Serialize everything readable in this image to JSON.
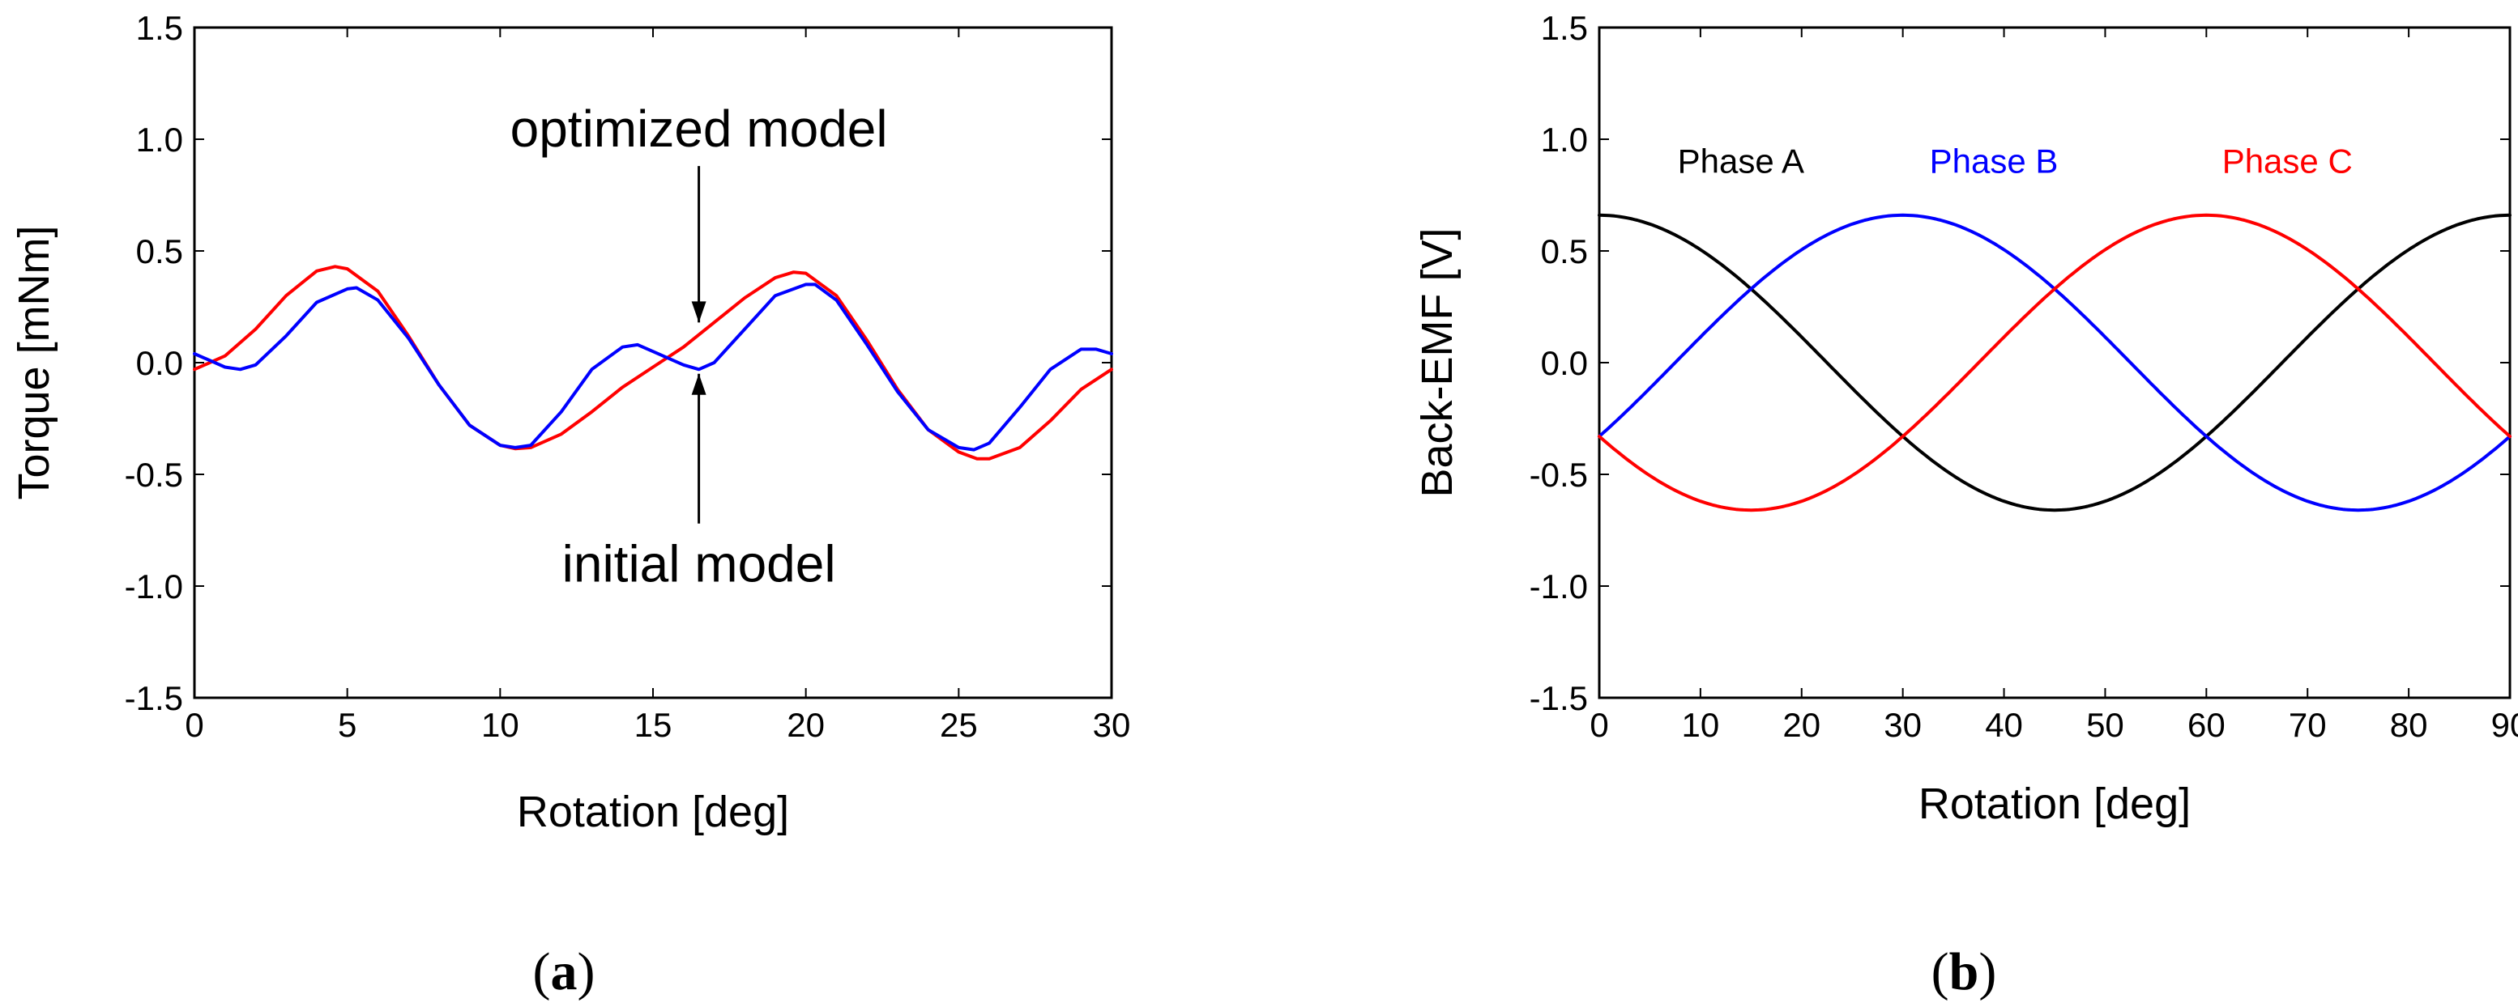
{
  "colors": {
    "red": "#ff0000",
    "blue": "#0000ff",
    "black": "#000000"
  },
  "chart_data": [
    {
      "id": "a",
      "type": "line",
      "caption": {
        "open": "(",
        "letter": "a",
        "close": ")"
      },
      "xlabel": "Rotation [deg]",
      "ylabel": "Torque [mNm]",
      "xlim": [
        0,
        30
      ],
      "ylim": [
        -1.5,
        1.5
      ],
      "xticks": [
        "0",
        "5",
        "10",
        "15",
        "20",
        "25",
        "30"
      ],
      "yticks": [
        "-1.5",
        "-1.0",
        "-0.5",
        "0.0",
        "0.5",
        "1.0",
        "1.5"
      ],
      "annotations": [
        {
          "text": "optimized model",
          "arrow_from": [
            16.5,
            0.88
          ],
          "arrow_to": [
            16.5,
            0.18
          ]
        },
        {
          "text": "initial model",
          "arrow_from": [
            16.5,
            -0.72
          ],
          "arrow_to": [
            16.5,
            -0.05
          ]
        }
      ],
      "series": [
        {
          "name": "optimized model",
          "color": "red",
          "x": [
            0,
            1,
            2,
            3,
            4,
            4.6,
            5,
            6,
            7,
            8,
            9,
            10,
            10.5,
            11,
            12,
            13,
            14,
            15,
            16,
            17,
            18,
            19,
            19.6,
            20,
            21,
            22,
            23,
            24,
            25,
            25.6,
            26,
            27,
            28,
            29,
            30
          ],
          "y": [
            -0.03,
            0.03,
            0.15,
            0.3,
            0.41,
            0.43,
            0.42,
            0.32,
            0.12,
            -0.1,
            -0.28,
            -0.37,
            -0.385,
            -0.38,
            -0.32,
            -0.22,
            -0.11,
            -0.02,
            0.07,
            0.18,
            0.29,
            0.38,
            0.405,
            0.4,
            0.3,
            0.1,
            -0.12,
            -0.3,
            -0.4,
            -0.43,
            -0.43,
            -0.38,
            -0.26,
            -0.12,
            -0.03
          ]
        },
        {
          "name": "initial model",
          "color": "blue",
          "x": [
            0,
            0.5,
            1,
            1.5,
            2,
            3,
            4,
            5,
            5.3,
            6,
            7,
            8,
            9,
            10,
            10.5,
            11,
            12,
            13,
            14,
            14.5,
            15,
            16,
            16.5,
            17,
            18,
            19,
            20,
            20.3,
            21,
            22,
            23,
            24,
            25,
            25.5,
            26,
            27,
            28,
            29,
            29.5,
            30
          ],
          "y": [
            0.04,
            0.01,
            -0.02,
            -0.03,
            -0.01,
            0.12,
            0.27,
            0.33,
            0.335,
            0.28,
            0.11,
            -0.1,
            -0.28,
            -0.37,
            -0.38,
            -0.37,
            -0.22,
            -0.03,
            0.07,
            0.08,
            0.05,
            -0.01,
            -0.03,
            0.0,
            0.15,
            0.3,
            0.35,
            0.35,
            0.28,
            0.08,
            -0.13,
            -0.3,
            -0.38,
            -0.39,
            -0.36,
            -0.2,
            -0.03,
            0.06,
            0.06,
            0.04
          ]
        }
      ]
    },
    {
      "id": "b",
      "type": "line",
      "caption": {
        "open": "(",
        "letter": "b",
        "close": ")"
      },
      "xlabel": "Rotation [deg]",
      "ylabel": "Back-EMF [V]",
      "xlim": [
        0,
        90
      ],
      "ylim": [
        -1.5,
        1.5
      ],
      "xticks": [
        "0",
        "10",
        "20",
        "30",
        "40",
        "50",
        "60",
        "70",
        "80",
        "90"
      ],
      "yticks": [
        "-1.5",
        "-1.0",
        "-0.5",
        "0.0",
        "0.5",
        "1.0",
        "1.5"
      ],
      "series": [
        {
          "name": "Phase A",
          "color": "black",
          "amplitude": 0.66,
          "period_deg": 90,
          "phase_shift_deg": 0,
          "label": "Phase A",
          "label_pos": [
            14,
            0.85
          ]
        },
        {
          "name": "Phase B",
          "color": "blue",
          "amplitude": 0.66,
          "period_deg": 90,
          "phase_shift_deg": -120,
          "label": "Phase B",
          "label_pos": [
            39,
            0.85
          ]
        },
        {
          "name": "Phase C",
          "color": "red",
          "amplitude": 0.66,
          "period_deg": 90,
          "phase_shift_deg": 120,
          "label": "Phase C",
          "label_pos": [
            68,
            0.85
          ]
        }
      ]
    }
  ]
}
